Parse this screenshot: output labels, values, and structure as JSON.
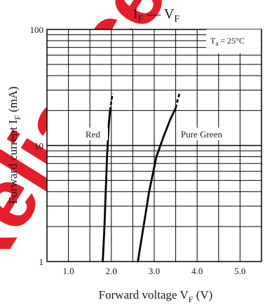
{
  "chart_data": {
    "type": "line",
    "title": {
      "base": "I",
      "sub1": "F",
      "dash": " — V",
      "sub2": "F"
    },
    "xlabel": {
      "text": "Forward voltage  V",
      "sub": "F",
      "unit": "  (V)"
    },
    "ylabel": {
      "text": "Forward current  I",
      "sub": "F",
      "unit": "  (mA)"
    },
    "x_range": [
      0.5,
      5.5
    ],
    "y_range": [
      1,
      100
    ],
    "y_scale": "log",
    "grid": true,
    "x_ticks": [
      "1.0",
      "2.0",
      "3.0",
      "4.0",
      "5.0"
    ],
    "y_ticks": [
      "1",
      "10",
      "100"
    ],
    "annotation": {
      "base": "T",
      "sub": "a",
      "rest": " = 25°C"
    },
    "series": [
      {
        "name": "Red",
        "color": "#000000",
        "points": [
          [
            1.8,
            1
          ],
          [
            1.84,
            2
          ],
          [
            1.87,
            4
          ],
          [
            1.9,
            8
          ],
          [
            1.94,
            15
          ],
          [
            1.97,
            20
          ]
        ],
        "dashed_points": [
          [
            1.97,
            20
          ],
          [
            2.0,
            24
          ],
          [
            2.03,
            28
          ]
        ]
      },
      {
        "name": "Pure Green",
        "color": "#000000",
        "points": [
          [
            2.62,
            1
          ],
          [
            2.75,
            2
          ],
          [
            2.88,
            4
          ],
          [
            3.05,
            8
          ],
          [
            3.22,
            12
          ],
          [
            3.38,
            17
          ],
          [
            3.5,
            21
          ]
        ],
        "dashed_points": [
          [
            3.5,
            21
          ],
          [
            3.55,
            25
          ],
          [
            3.6,
            29
          ]
        ]
      }
    ]
  },
  "watermark": {
    "text": "Reliance",
    "color": "#e30613"
  }
}
